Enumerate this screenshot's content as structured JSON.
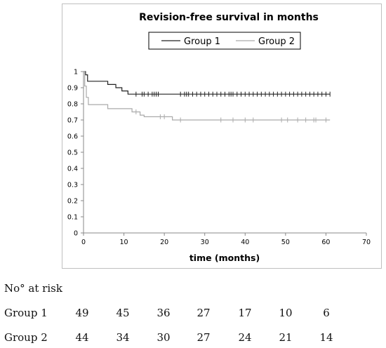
{
  "chart_data": {
    "type": "line",
    "title": "Revision-free survival in months",
    "xlabel": "time (months)",
    "ylabel": "",
    "xlim": [
      0,
      70
    ],
    "ylim": [
      0,
      1
    ],
    "x_ticks": [
      "0",
      "10",
      "20",
      "30",
      "40",
      "50",
      "60",
      "70"
    ],
    "y_ticks": [
      "0",
      "0.1",
      "0.2",
      "0.3",
      "0.4",
      "0.5",
      "0.6",
      "0.7",
      "0.8",
      "0.9",
      "1"
    ],
    "x_tick_values": [
      0,
      10,
      20,
      30,
      40,
      50,
      60,
      70
    ],
    "y_tick_values": [
      0,
      0.1,
      0.2,
      0.3,
      0.4,
      0.5,
      0.6,
      0.7,
      0.8,
      0.9,
      1
    ],
    "grid": false,
    "legend_position": "top-center",
    "series": [
      {
        "name": "Group 1",
        "color": "#222222",
        "steps": [
          [
            0,
            1
          ],
          [
            0.5,
            0.98
          ],
          [
            1,
            0.94
          ],
          [
            6,
            0.92
          ],
          [
            8,
            0.9
          ],
          [
            9.5,
            0.88
          ],
          [
            11,
            0.86
          ],
          [
            61,
            0.86
          ]
        ],
        "censored": [
          13,
          14.5,
          15,
          16,
          17,
          17.5,
          18,
          18.5,
          24,
          25,
          25.5,
          26,
          27,
          28,
          29,
          30,
          31,
          32,
          33,
          34,
          35,
          36,
          36.5,
          37,
          38,
          39,
          40,
          41,
          42,
          43,
          44,
          45,
          46,
          47,
          48,
          49,
          50,
          51,
          52,
          53,
          54,
          55,
          56,
          57,
          58,
          59,
          60,
          61
        ]
      },
      {
        "name": "Group 2",
        "color": "#aaaaaa",
        "steps": [
          [
            0,
            1
          ],
          [
            0.3,
            0.91
          ],
          [
            0.7,
            0.84
          ],
          [
            1.2,
            0.795
          ],
          [
            6,
            0.77
          ],
          [
            12,
            0.75
          ],
          [
            14,
            0.73
          ],
          [
            15,
            0.72
          ],
          [
            22,
            0.7
          ],
          [
            61,
            0.7
          ]
        ],
        "censored": [
          13,
          19,
          20,
          24,
          34,
          37,
          40,
          42,
          49,
          50.5,
          53,
          55,
          57,
          57.5,
          60
        ]
      }
    ],
    "risk_table": {
      "heading": "No° at risk",
      "rows": [
        {
          "label": "Group 1",
          "values": [
            "49",
            "45",
            "36",
            "27",
            "17",
            "10",
            "6"
          ]
        },
        {
          "label": "Group 2",
          "values": [
            "44",
            "34",
            "30",
            "27",
            "24",
            "21",
            "14"
          ]
        }
      ]
    }
  }
}
